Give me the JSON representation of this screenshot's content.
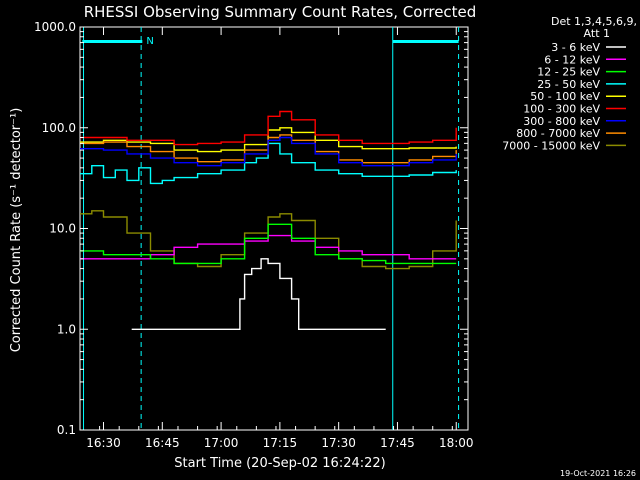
{
  "chart_data": {
    "type": "line",
    "title": "RHESSI Observing Summary Count Rates, Corrected",
    "xlabel": "Start Time (20-Sep-02 16:24:22)",
    "ylabel": "Corrected Count Rate (s⁻¹ detector⁻¹)",
    "yscale": "log",
    "ylim": [
      0.1,
      1000
    ],
    "xlim_minutes": [
      16.4,
      18.05
    ],
    "x_ticks": [
      {
        "t": 16.5,
        "label": "16:30"
      },
      {
        "t": 16.75,
        "label": "16:45"
      },
      {
        "t": 17.0,
        "label": "17:00"
      },
      {
        "t": 17.25,
        "label": "17:15"
      },
      {
        "t": 17.5,
        "label": "17:30"
      },
      {
        "t": 17.75,
        "label": "17:45"
      },
      {
        "t": 18.0,
        "label": "18:00"
      }
    ],
    "y_ticks": [
      {
        "v": 1000,
        "label": "1000.0"
      },
      {
        "v": 100,
        "label": "100.0"
      },
      {
        "v": 10,
        "label": "10.0"
      },
      {
        "v": 1,
        "label": "1.0"
      },
      {
        "v": 0.1,
        "label": "0.1"
      }
    ],
    "legend_header": [
      "Det 1,3,4,5,6,9,",
      "Att 1"
    ],
    "series": [
      {
        "name": "3 - 6 keV",
        "color": "#ffffff",
        "points": [
          [
            16.62,
            1.0
          ],
          [
            16.67,
            1.0
          ],
          [
            16.7,
            1.0
          ],
          [
            17.06,
            1.0
          ],
          [
            17.08,
            2.0
          ],
          [
            17.1,
            3.5
          ],
          [
            17.13,
            4.0
          ],
          [
            17.17,
            5.0
          ],
          [
            17.2,
            4.5
          ],
          [
            17.25,
            3.2
          ],
          [
            17.3,
            2.0
          ],
          [
            17.33,
            1.0
          ],
          [
            17.4,
            1.0
          ],
          [
            17.5,
            1.0
          ],
          [
            17.6,
            1.0
          ],
          [
            17.7,
            1.0
          ]
        ]
      },
      {
        "name": "6 - 12 keV",
        "color": "#ff00ff",
        "points": [
          [
            16.4,
            5.0
          ],
          [
            16.5,
            5.0
          ],
          [
            16.6,
            5.0
          ],
          [
            16.7,
            5.5
          ],
          [
            16.8,
            6.5
          ],
          [
            16.9,
            7.0
          ],
          [
            17.0,
            7.0
          ],
          [
            17.1,
            7.5
          ],
          [
            17.2,
            8.5
          ],
          [
            17.3,
            7.5
          ],
          [
            17.4,
            6.5
          ],
          [
            17.5,
            6.0
          ],
          [
            17.6,
            5.5
          ],
          [
            17.7,
            5.5
          ],
          [
            17.8,
            5.0
          ],
          [
            17.9,
            5.0
          ],
          [
            18.0,
            5.0
          ]
        ]
      },
      {
        "name": "12 - 25 keV",
        "color": "#00ff00",
        "points": [
          [
            16.4,
            6.0
          ],
          [
            16.5,
            5.5
          ],
          [
            16.6,
            5.5
          ],
          [
            16.7,
            5.0
          ],
          [
            16.8,
            4.5
          ],
          [
            16.9,
            4.5
          ],
          [
            17.0,
            5.0
          ],
          [
            17.1,
            8.0
          ],
          [
            17.2,
            11.0
          ],
          [
            17.3,
            8.0
          ],
          [
            17.4,
            5.5
          ],
          [
            17.5,
            5.0
          ],
          [
            17.6,
            4.8
          ],
          [
            17.7,
            4.5
          ],
          [
            17.8,
            4.5
          ],
          [
            17.9,
            4.5
          ],
          [
            18.0,
            4.5
          ]
        ]
      },
      {
        "name": "25 - 50 keV",
        "color": "#00ffff",
        "points": [
          [
            16.4,
            35
          ],
          [
            16.45,
            42
          ],
          [
            16.5,
            32
          ],
          [
            16.55,
            38
          ],
          [
            16.6,
            30
          ],
          [
            16.65,
            40
          ],
          [
            16.7,
            28
          ],
          [
            16.75,
            30
          ],
          [
            16.8,
            32
          ],
          [
            16.9,
            35
          ],
          [
            17.0,
            38
          ],
          [
            17.1,
            45
          ],
          [
            17.15,
            50
          ],
          [
            17.2,
            70
          ],
          [
            17.25,
            55
          ],
          [
            17.3,
            45
          ],
          [
            17.4,
            38
          ],
          [
            17.5,
            35
          ],
          [
            17.6,
            33
          ],
          [
            17.7,
            33
          ],
          [
            17.8,
            34
          ],
          [
            17.9,
            36
          ],
          [
            18.0,
            38
          ]
        ]
      },
      {
        "name": "50 - 100 keV",
        "color": "#ffff00",
        "points": [
          [
            16.4,
            72
          ],
          [
            16.5,
            75
          ],
          [
            16.6,
            72
          ],
          [
            16.7,
            70
          ],
          [
            16.8,
            60
          ],
          [
            16.9,
            58
          ],
          [
            17.0,
            60
          ],
          [
            17.1,
            68
          ],
          [
            17.2,
            95
          ],
          [
            17.25,
            100
          ],
          [
            17.3,
            90
          ],
          [
            17.4,
            75
          ],
          [
            17.5,
            65
          ],
          [
            17.6,
            62
          ],
          [
            17.7,
            62
          ],
          [
            17.8,
            63
          ],
          [
            17.9,
            63
          ],
          [
            18.0,
            65
          ]
        ]
      },
      {
        "name": "100 - 300 keV",
        "color": "#ff0000",
        "points": [
          [
            16.4,
            80
          ],
          [
            16.5,
            80
          ],
          [
            16.6,
            75
          ],
          [
            16.7,
            75
          ],
          [
            16.8,
            68
          ],
          [
            16.9,
            70
          ],
          [
            17.0,
            72
          ],
          [
            17.1,
            85
          ],
          [
            17.2,
            130
          ],
          [
            17.25,
            145
          ],
          [
            17.3,
            120
          ],
          [
            17.4,
            85
          ],
          [
            17.5,
            75
          ],
          [
            17.6,
            70
          ],
          [
            17.7,
            70
          ],
          [
            17.8,
            72
          ],
          [
            17.9,
            75
          ],
          [
            18.0,
            100
          ]
        ]
      },
      {
        "name": "300 - 800 keV",
        "color": "#0000ff",
        "points": [
          [
            16.4,
            62
          ],
          [
            16.5,
            60
          ],
          [
            16.6,
            55
          ],
          [
            16.7,
            50
          ],
          [
            16.8,
            45
          ],
          [
            16.9,
            42
          ],
          [
            17.0,
            45
          ],
          [
            17.1,
            55
          ],
          [
            17.2,
            75
          ],
          [
            17.25,
            80
          ],
          [
            17.3,
            70
          ],
          [
            17.4,
            55
          ],
          [
            17.5,
            45
          ],
          [
            17.6,
            42
          ],
          [
            17.7,
            42
          ],
          [
            17.8,
            45
          ],
          [
            17.9,
            48
          ],
          [
            18.0,
            55
          ]
        ]
      },
      {
        "name": "800 - 7000 keV",
        "color": "#ff8c00",
        "points": [
          [
            16.4,
            70
          ],
          [
            16.5,
            72
          ],
          [
            16.6,
            65
          ],
          [
            16.7,
            58
          ],
          [
            16.8,
            50
          ],
          [
            16.9,
            46
          ],
          [
            17.0,
            48
          ],
          [
            17.1,
            60
          ],
          [
            17.2,
            80
          ],
          [
            17.25,
            85
          ],
          [
            17.3,
            75
          ],
          [
            17.4,
            58
          ],
          [
            17.5,
            48
          ],
          [
            17.6,
            45
          ],
          [
            17.7,
            45
          ],
          [
            17.8,
            48
          ],
          [
            17.9,
            52
          ],
          [
            18.0,
            60
          ]
        ]
      },
      {
        "name": "7000 - 15000 keV",
        "color": "#8b8b00",
        "points": [
          [
            16.4,
            14
          ],
          [
            16.45,
            15
          ],
          [
            16.5,
            13
          ],
          [
            16.6,
            9
          ],
          [
            16.7,
            6
          ],
          [
            16.8,
            4.5
          ],
          [
            16.9,
            4.2
          ],
          [
            17.0,
            5.5
          ],
          [
            17.1,
            9
          ],
          [
            17.2,
            13
          ],
          [
            17.25,
            14
          ],
          [
            17.3,
            12
          ],
          [
            17.4,
            8
          ],
          [
            17.5,
            5
          ],
          [
            17.6,
            4.2
          ],
          [
            17.7,
            4.0
          ],
          [
            17.8,
            4.2
          ],
          [
            17.9,
            6.0
          ],
          [
            18.0,
            12
          ]
        ]
      }
    ],
    "vertical_lines": [
      {
        "t": 16.415,
        "style": "solid",
        "color": "#00ffff"
      },
      {
        "t": 16.66,
        "style": "dashed",
        "color": "#00ffff"
      },
      {
        "t": 17.73,
        "style": "solid",
        "color": "#00ffff"
      },
      {
        "t": 18.01,
        "style": "dashed",
        "color": "#00ffff"
      }
    ],
    "flag_bars": [
      {
        "t0": 16.41,
        "t1": 16.665,
        "label": "N"
      },
      {
        "t0": 17.73,
        "t1": 18.01,
        "label": ""
      }
    ]
  },
  "footer_timestamp": "19-Oct-2021 16:26"
}
